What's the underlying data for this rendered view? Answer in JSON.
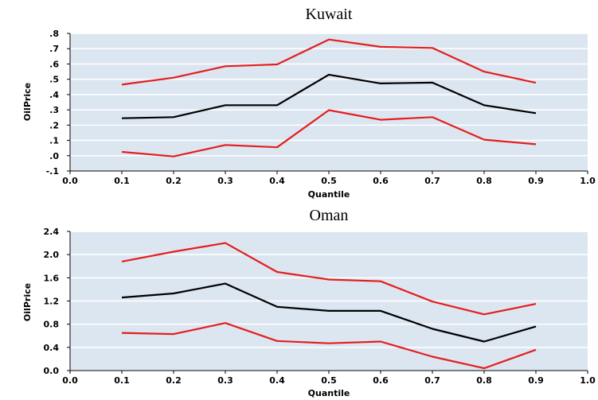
{
  "chart_data": [
    {
      "type": "line",
      "title": "Kuwait",
      "xlabel": "Quantile",
      "ylabel": "OilPrice",
      "xlim": [
        0.0,
        1.0
      ],
      "ylim": [
        -0.1,
        0.8
      ],
      "xticks": [
        "0.0",
        "0.1",
        "0.2",
        "0.3",
        "0.4",
        "0.5",
        "0.6",
        "0.7",
        "0.8",
        "0.9",
        "1.0"
      ],
      "yticks": [
        {
          "value": -0.1,
          "label": "-.1"
        },
        {
          "value": 0.0,
          "label": ".0"
        },
        {
          "value": 0.1,
          "label": ".1"
        },
        {
          "value": 0.2,
          "label": ".2"
        },
        {
          "value": 0.3,
          "label": ".3"
        },
        {
          "value": 0.4,
          "label": ".4"
        },
        {
          "value": 0.5,
          "label": ".5"
        },
        {
          "value": 0.6,
          "label": ".6"
        },
        {
          "value": 0.7,
          "label": ".7"
        },
        {
          "value": 0.8,
          "label": ".8"
        }
      ],
      "grid": true,
      "background": "#dce6f1",
      "x": [
        0.1,
        0.2,
        0.3,
        0.4,
        0.5,
        0.6,
        0.7,
        0.8,
        0.9
      ],
      "series": [
        {
          "color": "#e41e1e",
          "values": [
            0.465,
            0.51,
            0.585,
            0.597,
            0.76,
            0.712,
            0.705,
            0.55,
            0.477
          ]
        },
        {
          "color": "#000000",
          "values": [
            0.245,
            0.252,
            0.33,
            0.33,
            0.53,
            0.473,
            0.478,
            0.33,
            0.278
          ]
        },
        {
          "color": "#e41e1e",
          "values": [
            0.025,
            -0.005,
            0.07,
            0.055,
            0.298,
            0.235,
            0.252,
            0.105,
            0.075
          ]
        }
      ]
    },
    {
      "type": "line",
      "title": "Oman",
      "xlabel": "Quantile",
      "ylabel": "OilPrice",
      "xlim": [
        0.0,
        1.0
      ],
      "ylim": [
        0.0,
        2.4
      ],
      "xticks": [
        "0.0",
        "0.1",
        "0.2",
        "0.3",
        "0.4",
        "0.5",
        "0.6",
        "0.7",
        "0.8",
        "0.9",
        "1.0"
      ],
      "yticks": [
        {
          "value": 0.0,
          "label": "0.0"
        },
        {
          "value": 0.4,
          "label": "0.4"
        },
        {
          "value": 0.8,
          "label": "0.8"
        },
        {
          "value": 1.2,
          "label": "1.2"
        },
        {
          "value": 1.6,
          "label": "1.6"
        },
        {
          "value": 2.0,
          "label": "2.0"
        },
        {
          "value": 2.4,
          "label": "2.4"
        }
      ],
      "grid": true,
      "background": "#dce6f1",
      "x": [
        0.1,
        0.2,
        0.3,
        0.4,
        0.5,
        0.6,
        0.7,
        0.8,
        0.9
      ],
      "series": [
        {
          "color": "#e41e1e",
          "values": [
            1.88,
            2.05,
            2.2,
            1.7,
            1.57,
            1.54,
            1.19,
            0.97,
            1.15
          ]
        },
        {
          "color": "#000000",
          "values": [
            1.26,
            1.33,
            1.5,
            1.1,
            1.03,
            1.03,
            0.72,
            0.5,
            0.76
          ]
        },
        {
          "color": "#e41e1e",
          "values": [
            0.65,
            0.63,
            0.82,
            0.51,
            0.47,
            0.5,
            0.24,
            0.04,
            0.36
          ]
        }
      ]
    }
  ]
}
